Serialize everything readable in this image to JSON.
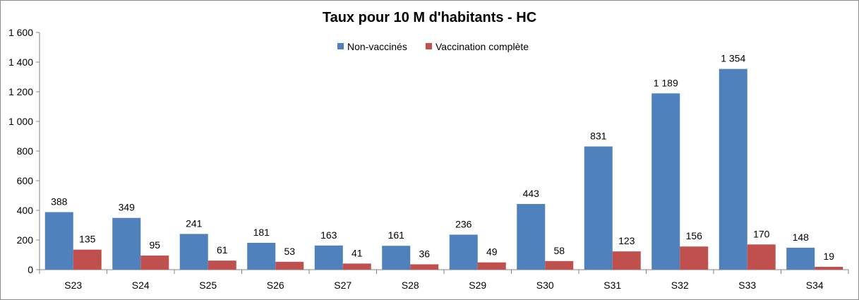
{
  "chart_data": {
    "type": "bar",
    "title": "Taux pour 10 M d'habitants - HC",
    "xlabel": "",
    "ylabel": "",
    "ylim": [
      0,
      1600
    ],
    "yticks": [
      0,
      200,
      400,
      600,
      800,
      1000,
      1200,
      1400,
      1600
    ],
    "ytick_labels": [
      "0",
      "200",
      "400",
      "600",
      "800",
      "1 000",
      "1 200",
      "1 400",
      "1 600"
    ],
    "categories": [
      "S23",
      "S24",
      "S25",
      "S26",
      "S27",
      "S28",
      "S29",
      "S30",
      "S31",
      "S32",
      "S33",
      "S34"
    ],
    "series": [
      {
        "name": "Non-vaccinés",
        "color": "#4f81bd",
        "values": [
          388,
          349,
          241,
          181,
          163,
          161,
          236,
          443,
          831,
          1189,
          1354,
          148
        ],
        "labels": [
          "388",
          "349",
          "241",
          "181",
          "163",
          "161",
          "236",
          "443",
          "831",
          "1 189",
          "1 354",
          "148"
        ]
      },
      {
        "name": "Vaccination complète",
        "color": "#c0504d",
        "values": [
          135,
          95,
          61,
          53,
          41,
          36,
          49,
          58,
          123,
          156,
          170,
          19
        ],
        "labels": [
          "135",
          "95",
          "61",
          "53",
          "41",
          "36",
          "49",
          "58",
          "123",
          "156",
          "170",
          "19"
        ]
      }
    ],
    "grid": false,
    "legend_position": "top-center"
  }
}
